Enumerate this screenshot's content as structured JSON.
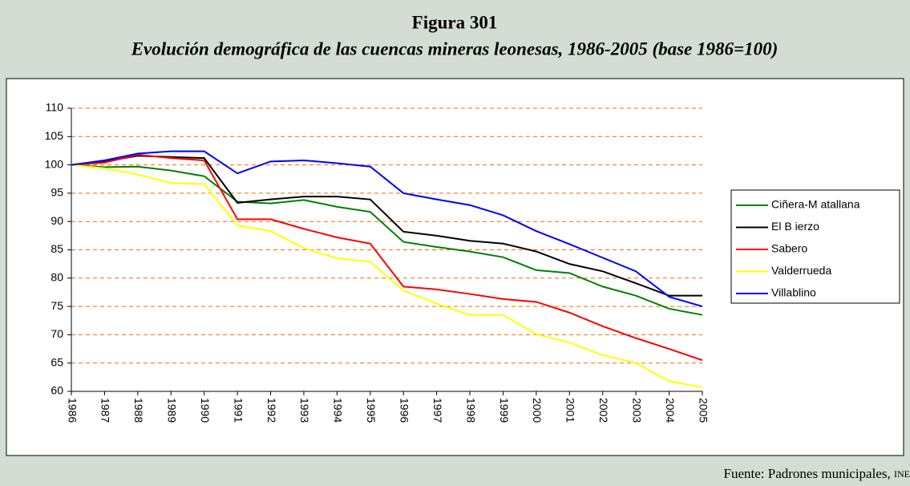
{
  "chart_data": {
    "type": "line",
    "title": "Figura 301",
    "subtitle": "Evolución demográfica de las cuencas mineras leonesas, 1986-2005 (base 1986=100)",
    "source": "Fuente: Padrones municipales,",
    "source_org": "INE",
    "categories": [
      "1986",
      "1987",
      "1988",
      "1989",
      "1990",
      "1991",
      "1992",
      "1993",
      "1994",
      "1995",
      "1996",
      "1997",
      "1998",
      "1999",
      "2000",
      "2001",
      "2002",
      "2003",
      "2004",
      "2005"
    ],
    "ylim": [
      60,
      110
    ],
    "yticks": [
      60,
      65,
      70,
      75,
      80,
      85,
      90,
      95,
      100,
      105,
      110
    ],
    "grid": true,
    "legend": "right",
    "series": [
      {
        "name": "Ciñera-M atallana",
        "color": "#008000",
        "values": [
          100,
          99.6,
          99.7,
          99,
          98,
          93.5,
          93.2,
          93.8,
          92.6,
          91.7,
          86.4,
          85.5,
          84.7,
          83.7,
          81.4,
          80.9,
          78.5,
          76.9,
          74.6,
          73.5
        ]
      },
      {
        "name": "El B ierzo",
        "color": "#000000",
        "values": [
          100,
          100.6,
          101.6,
          101.4,
          101.2,
          93.3,
          93.9,
          94.4,
          94.4,
          93.9,
          88.2,
          87.5,
          86.6,
          86.1,
          84.7,
          82.5,
          81.2,
          79.1,
          76.9,
          76.9
        ]
      },
      {
        "name": "Sabero",
        "color": "#ff0000",
        "values": [
          100,
          100.4,
          101.8,
          101.2,
          100.8,
          90.4,
          90.4,
          88.7,
          87.2,
          86.1,
          78.5,
          78,
          77.2,
          76.3,
          75.8,
          73.9,
          71.5,
          69.4,
          67.5,
          65.5
        ]
      },
      {
        "name": "Valderrueda",
        "color": "#ffff00",
        "values": [
          100,
          99.4,
          98.3,
          96.8,
          96.6,
          89.3,
          88.3,
          85.3,
          83.5,
          82.9,
          77.8,
          75.5,
          73.5,
          73.5,
          70.1,
          68.6,
          66.4,
          65,
          61.8,
          60.7
        ]
      },
      {
        "name": "Villablino",
        "color": "#0000ff",
        "values": [
          100,
          100.8,
          102,
          102.4,
          102.4,
          98.5,
          100.6,
          100.8,
          100.3,
          99.7,
          95,
          93.9,
          92.9,
          91.1,
          88.3,
          86,
          83.6,
          81.2,
          76.7,
          75
        ]
      }
    ]
  }
}
